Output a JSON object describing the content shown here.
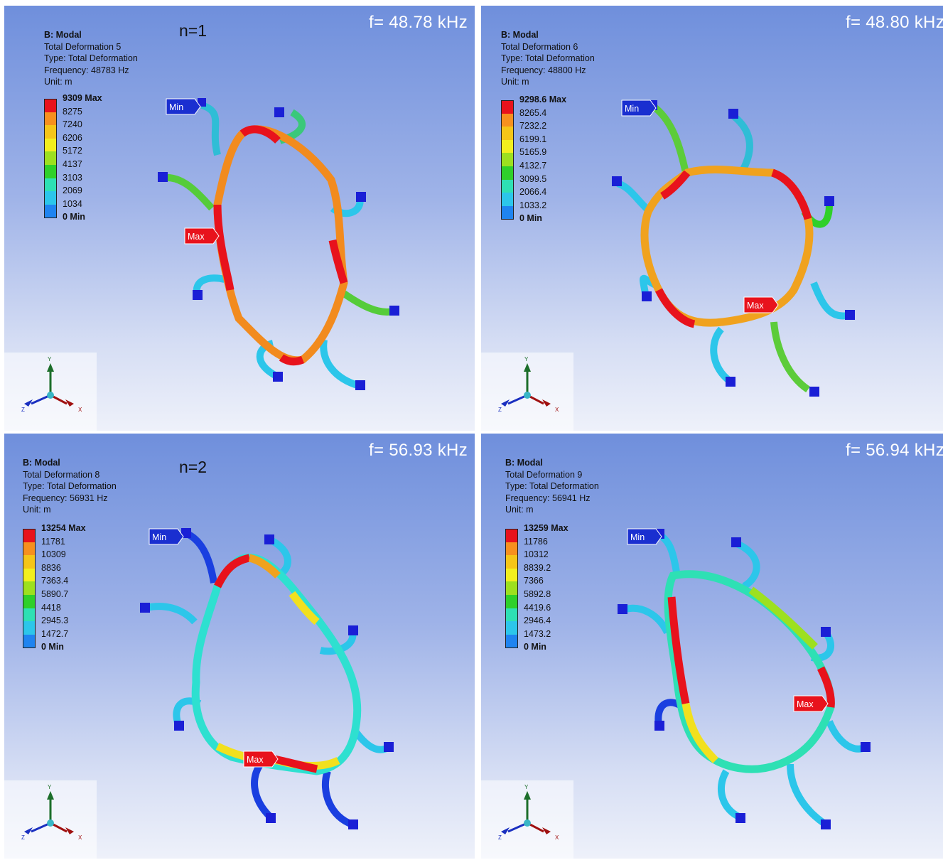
{
  "panels": [
    {
      "frequency_label": "f= 48.78 kHz",
      "mode_label": "n=1",
      "info": {
        "title": "B: Modal",
        "result": "Total Deformation 5",
        "type": "Type: Total Deformation",
        "frequency": "Frequency: 48783 Hz",
        "unit": "Unit: m"
      },
      "legend": [
        "9309 Max",
        "8275",
        "7240",
        "6206",
        "5172",
        "4137",
        "3103",
        "2069",
        "1034",
        "0 Min"
      ],
      "min_tag": "Min",
      "max_tag": "Max",
      "axes": {
        "y": "Y",
        "z": "Z",
        "x": "X"
      }
    },
    {
      "frequency_label": "f= 48.80 kHz",
      "mode_label": "",
      "info": {
        "title": "B: Modal",
        "result": "Total Deformation 6",
        "type": "Type: Total Deformation",
        "frequency": "Frequency: 48800 Hz",
        "unit": "Unit: m"
      },
      "legend": [
        "9298.6 Max",
        "8265.4",
        "7232.2",
        "6199.1",
        "5165.9",
        "4132.7",
        "3099.5",
        "2066.4",
        "1033.2",
        "0 Min"
      ],
      "min_tag": "Min",
      "max_tag": "Max",
      "axes": {
        "y": "Y",
        "z": "Z",
        "x": "X"
      }
    },
    {
      "frequency_label": "f= 56.93 kHz",
      "mode_label": "n=2",
      "info": {
        "title": "B: Modal",
        "result": "Total Deformation 8",
        "type": "Type: Total Deformation",
        "frequency": "Frequency: 56931 Hz",
        "unit": "Unit: m"
      },
      "legend": [
        "13254 Max",
        "11781",
        "10309",
        "8836",
        "7363.4",
        "5890.7",
        "4418",
        "2945.3",
        "1472.7",
        "0 Min"
      ],
      "min_tag": "Min",
      "max_tag": "Max",
      "axes": {
        "y": "Y",
        "z": "Z",
        "x": "X"
      }
    },
    {
      "frequency_label": "f= 56.94 kHz",
      "mode_label": "",
      "info": {
        "title": "B: Modal",
        "result": "Total Deformation 9",
        "type": "Type: Total Deformation",
        "frequency": "Frequency: 56941 Hz",
        "unit": "Unit: m"
      },
      "legend": [
        "13259 Max",
        "11786",
        "10312",
        "8839.2",
        "7366",
        "5892.8",
        "4419.6",
        "2946.4",
        "1473.2",
        "0 Min"
      ],
      "min_tag": "Min",
      "max_tag": "Max",
      "axes": {
        "y": "Y",
        "z": "Z",
        "x": "X"
      }
    }
  ],
  "legend_colors": [
    "#e8121c",
    "#f7901e",
    "#f5c518",
    "#f2ef1e",
    "#9de01f",
    "#2fd02a",
    "#2ee0b4",
    "#2cc6ea",
    "#1f84f0",
    "#1a1fd6"
  ]
}
